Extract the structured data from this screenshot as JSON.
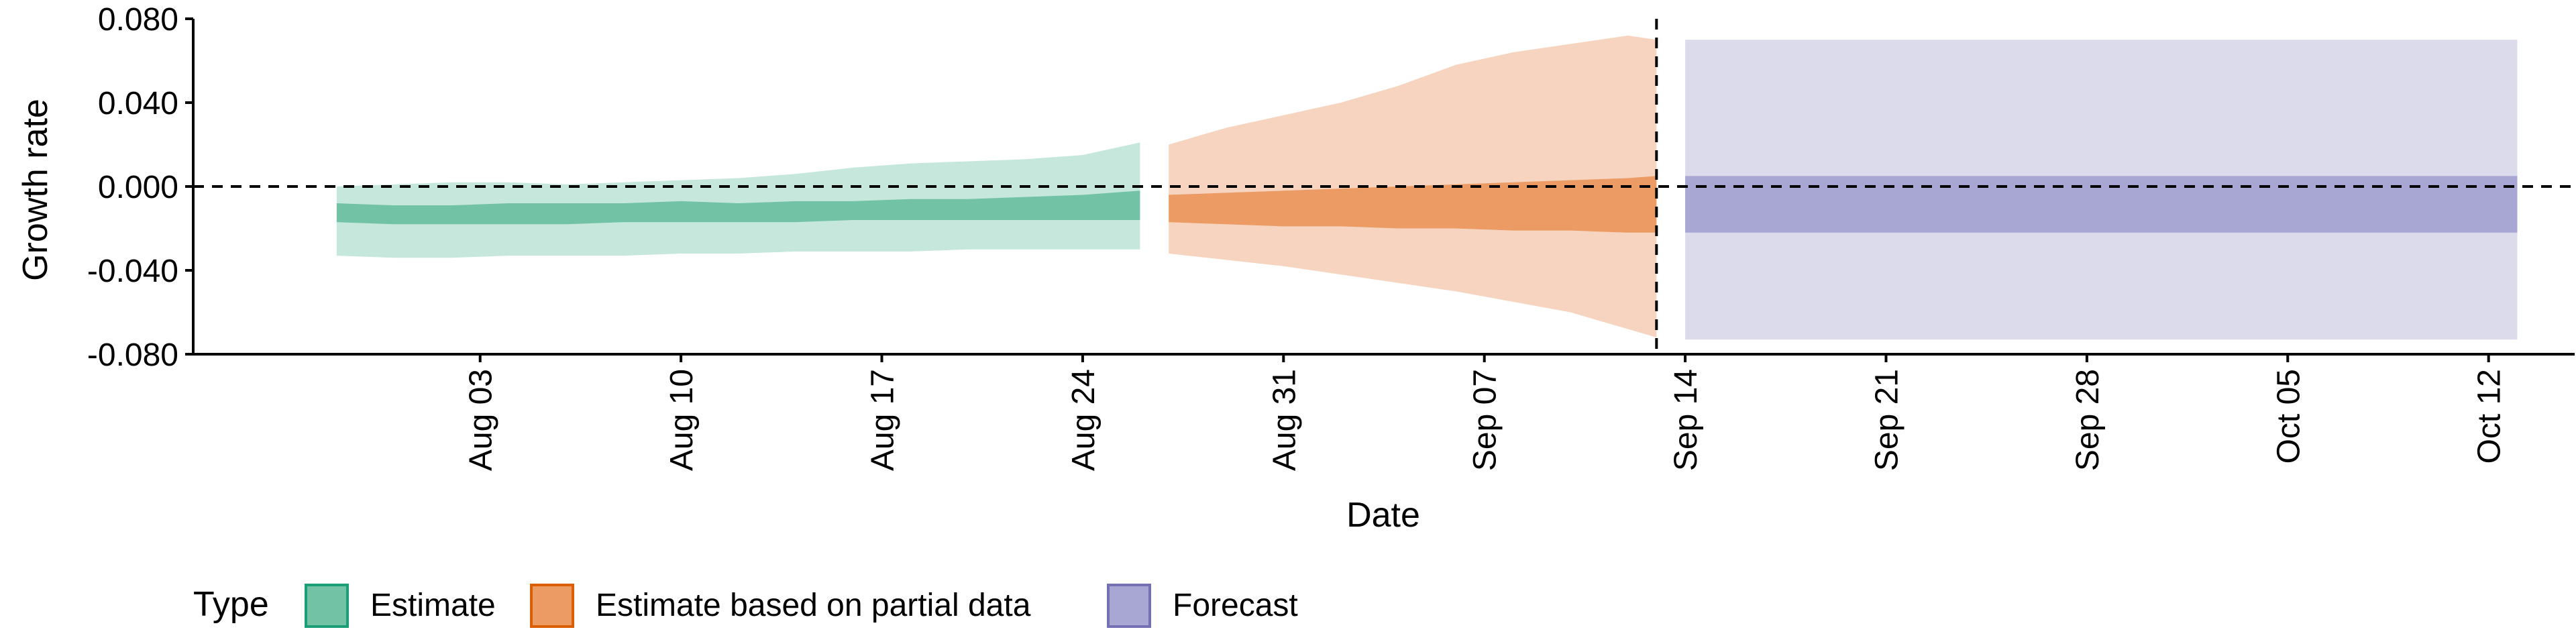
{
  "chart_data": {
    "type": "area",
    "title": "",
    "xlabel": "Date",
    "ylabel": "Growth rate",
    "ylim": [
      -0.08,
      0.08
    ],
    "xlim": [
      "2023-07-24",
      "2023-10-15"
    ],
    "y_ticks": [
      -0.08,
      -0.04,
      0,
      0.04,
      0.08
    ],
    "y_tick_labels": [
      "-0.080",
      "-0.040",
      "0.000",
      "0.040",
      "0.080"
    ],
    "x_ticks": [
      "2023-08-03",
      "2023-08-10",
      "2023-08-17",
      "2023-08-24",
      "2023-08-31",
      "2023-09-07",
      "2023-09-14",
      "2023-09-21",
      "2023-09-28",
      "2023-10-05",
      "2023-10-12"
    ],
    "x_tick_labels": [
      "Aug 03",
      "Aug 10",
      "Aug 17",
      "Aug 24",
      "Aug 31",
      "Sep 07",
      "Sep 14",
      "Sep 21",
      "Sep 28",
      "Oct 05",
      "Oct 12"
    ],
    "reference_lines": {
      "horizontal": 0,
      "vertical": "2023-09-13"
    },
    "grid": false,
    "legend": {
      "title": "Type",
      "position": "bottom-left",
      "entries": [
        "Estimate",
        "Estimate based on partial data",
        "Forecast"
      ]
    },
    "series": [
      {
        "name": "Estimate",
        "colors": {
          "inner": "#72c2a6",
          "outer": "#c6e7dc",
          "border": "#1b9e77"
        },
        "x": [
          "2023-07-29",
          "2023-07-31",
          "2023-08-02",
          "2023-08-04",
          "2023-08-06",
          "2023-08-08",
          "2023-08-10",
          "2023-08-12",
          "2023-08-14",
          "2023-08-16",
          "2023-08-18",
          "2023-08-20",
          "2023-08-22",
          "2023-08-24",
          "2023-08-26"
        ],
        "outer_lower": [
          -0.033,
          -0.034,
          -0.034,
          -0.033,
          -0.033,
          -0.033,
          -0.032,
          -0.032,
          -0.031,
          -0.031,
          -0.031,
          -0.03,
          -0.03,
          -0.03,
          -0.03
        ],
        "outer_upper": [
          0.0,
          0.001,
          0.002,
          0.002,
          0.001,
          0.002,
          0.003,
          0.004,
          0.006,
          0.009,
          0.011,
          0.012,
          0.013,
          0.015,
          0.021
        ],
        "inner_lower": [
          -0.017,
          -0.018,
          -0.018,
          -0.018,
          -0.018,
          -0.017,
          -0.017,
          -0.017,
          -0.017,
          -0.016,
          -0.016,
          -0.016,
          -0.016,
          -0.016,
          -0.016
        ],
        "inner_upper": [
          -0.008,
          -0.009,
          -0.009,
          -0.008,
          -0.008,
          -0.008,
          -0.007,
          -0.008,
          -0.007,
          -0.007,
          -0.006,
          -0.006,
          -0.005,
          -0.004,
          -0.002
        ]
      },
      {
        "name": "Estimate based on partial data",
        "colors": {
          "inner": "#eb9b63",
          "outer": "#f6d4bf",
          "border": "#d95f02"
        },
        "x": [
          "2023-08-27",
          "2023-08-29",
          "2023-08-31",
          "2023-09-02",
          "2023-09-04",
          "2023-09-06",
          "2023-09-08",
          "2023-09-10",
          "2023-09-12",
          "2023-09-13"
        ],
        "outer_lower": [
          -0.032,
          -0.035,
          -0.038,
          -0.042,
          -0.046,
          -0.05,
          -0.055,
          -0.06,
          -0.068,
          -0.072
        ],
        "outer_upper": [
          0.02,
          0.028,
          0.034,
          0.04,
          0.048,
          0.058,
          0.064,
          0.068,
          0.072,
          0.07
        ],
        "inner_lower": [
          -0.017,
          -0.018,
          -0.019,
          -0.019,
          -0.02,
          -0.02,
          -0.021,
          -0.021,
          -0.022,
          -0.022
        ],
        "inner_upper": [
          -0.004,
          -0.003,
          -0.002,
          -0.001,
          0.0,
          0.001,
          0.002,
          0.003,
          0.004,
          0.005
        ]
      },
      {
        "name": "Forecast",
        "colors": {
          "inner": "#a8a6d2",
          "outer": "#dcdbec",
          "border": "#7570b3"
        },
        "x": [
          "2023-09-14",
          "2023-10-13"
        ],
        "outer_lower": [
          -0.073,
          -0.073
        ],
        "outer_upper": [
          0.07,
          0.07
        ],
        "inner_lower": [
          -0.022,
          -0.022
        ],
        "inner_upper": [
          0.005,
          0.005
        ]
      }
    ]
  }
}
